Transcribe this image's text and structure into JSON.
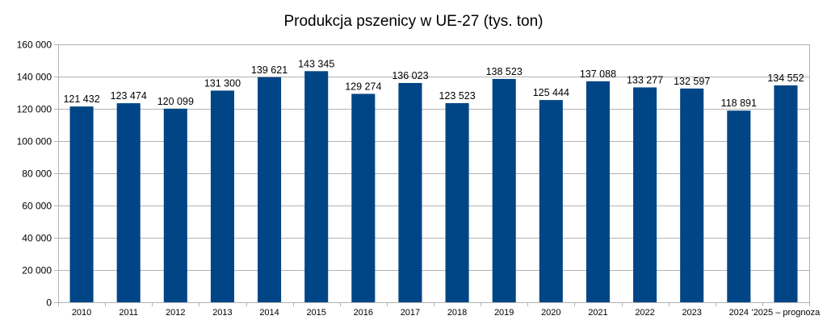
{
  "chart_data": {
    "type": "bar",
    "title": "Produkcja pszenicy w UE-27 (tys. ton)",
    "xlabel": "",
    "ylabel": "",
    "categories": [
      "2010",
      "2011",
      "2012",
      "2013",
      "2014",
      "2015",
      "2016",
      "2017",
      "2018",
      "2019",
      "2020",
      "2021",
      "2022",
      "2023",
      "2024",
      "'2025 – prognoza"
    ],
    "values": [
      121432,
      123474,
      120099,
      131300,
      139621,
      143345,
      129274,
      136023,
      123523,
      138523,
      125444,
      137088,
      133277,
      132597,
      118891,
      134552
    ],
    "value_labels": [
      "121 432",
      "123 474",
      "120 099",
      "131 300",
      "139 621",
      "143 345",
      "129 274",
      "136 023",
      "123 523",
      "138 523",
      "125 444",
      "137 088",
      "133 277",
      "132 597",
      "118 891",
      "134 552"
    ],
    "ylim": [
      0,
      160000
    ],
    "y_ticks": [
      0,
      20000,
      40000,
      60000,
      80000,
      100000,
      120000,
      140000,
      160000
    ],
    "y_tick_labels": [
      "0",
      "20 000",
      "40 000",
      "60 000",
      "80 000",
      "100 000",
      "120 000",
      "140 000",
      "160 000"
    ],
    "grid": true,
    "legend": "none",
    "bar_color": "#004586"
  }
}
